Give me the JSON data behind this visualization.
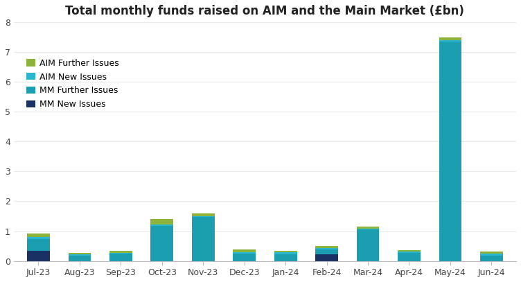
{
  "title": "Total monthly funds raised on AIM and the Main Market (£bn)",
  "categories": [
    "Jul-23",
    "Aug-23",
    "Sep-23",
    "Oct-23",
    "Nov-23",
    "Dec-23",
    "Jan-24",
    "Feb-24",
    "Mar-24",
    "Apr-24",
    "May-24",
    "Jun-24"
  ],
  "series": {
    "MM New Issues": [
      0.35,
      0.0,
      0.0,
      0.0,
      0.0,
      0.0,
      0.0,
      0.22,
      0.0,
      0.0,
      0.0,
      0.0
    ],
    "MM Further Issues": [
      0.38,
      0.17,
      0.25,
      1.18,
      1.47,
      0.25,
      0.22,
      0.17,
      1.05,
      0.28,
      7.35,
      0.18
    ],
    "AIM New Issues": [
      0.08,
      0.05,
      0.02,
      0.05,
      0.04,
      0.05,
      0.07,
      0.04,
      0.03,
      0.04,
      0.04,
      0.06
    ],
    "AIM Further Issues": [
      0.12,
      0.05,
      0.08,
      0.17,
      0.08,
      0.08,
      0.04,
      0.07,
      0.07,
      0.05,
      0.09,
      0.08
    ]
  },
  "colors": {
    "MM New Issues": "#1a3263",
    "MM Further Issues": "#1a9eb0",
    "AIM New Issues": "#29b6d0",
    "AIM Further Issues": "#8db33a"
  },
  "ylim": [
    0,
    8
  ],
  "yticks": [
    0,
    1,
    2,
    3,
    4,
    5,
    6,
    7,
    8
  ],
  "background_color": "#ffffff",
  "legend_order": [
    "AIM Further Issues",
    "AIM New Issues",
    "MM Further Issues",
    "MM New Issues"
  ],
  "stack_order": [
    "MM New Issues",
    "MM Further Issues",
    "AIM New Issues",
    "AIM Further Issues"
  ],
  "bar_width": 0.55,
  "title_fontsize": 12,
  "tick_fontsize": 9,
  "legend_fontsize": 9
}
